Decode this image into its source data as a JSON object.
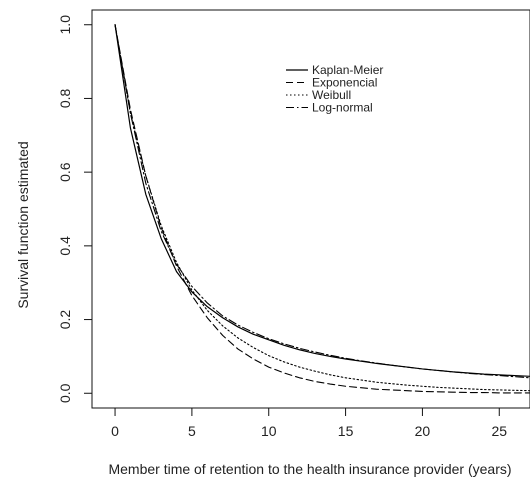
{
  "chart_data": {
    "type": "line",
    "xlabel": "Member time of retention to the health insurance provider (years)",
    "ylabel": "Survival function estimated",
    "xlim": [
      -1.5,
      27
    ],
    "ylim": [
      -0.04,
      1.04
    ],
    "x_ticks": [
      0,
      5,
      10,
      15,
      20,
      25
    ],
    "y_ticks": [
      0.0,
      0.2,
      0.4,
      0.6,
      0.8,
      1.0
    ],
    "x_tick_labels": [
      "0",
      "5",
      "10",
      "15",
      "20",
      "25"
    ],
    "y_tick_labels": [
      "0.0",
      "0.2",
      "0.4",
      "0.6",
      "0.8",
      "1.0"
    ],
    "grid": false,
    "legend_position": "top-center",
    "series": [
      {
        "name": "Kaplan-Meier",
        "line_style": "solid",
        "color": "#000000",
        "x": [
          0,
          1,
          2,
          3,
          4,
          5,
          6,
          7,
          8,
          9,
          10,
          11,
          12,
          13,
          14,
          15,
          16,
          17,
          18,
          19,
          20,
          21,
          22,
          23,
          24,
          25,
          26,
          27
        ],
        "y": [
          1.0,
          0.72,
          0.54,
          0.42,
          0.33,
          0.275,
          0.235,
          0.205,
          0.18,
          0.16,
          0.145,
          0.13,
          0.118,
          0.108,
          0.1,
          0.093,
          0.087,
          0.081,
          0.076,
          0.071,
          0.066,
          0.062,
          0.058,
          0.055,
          0.052,
          0.05,
          0.048,
          0.046
        ]
      },
      {
        "name": "Exponencial",
        "line_style": "dashed",
        "color": "#000000",
        "x": [
          0,
          1,
          2,
          3,
          4,
          5,
          6,
          7,
          8,
          9,
          10,
          11,
          12,
          13,
          14,
          15,
          16,
          17,
          18,
          19,
          20,
          21,
          22,
          23,
          24,
          25,
          26,
          27
        ],
        "y": [
          1.0,
          0.77,
          0.59,
          0.45,
          0.345,
          0.265,
          0.205,
          0.157,
          0.12,
          0.093,
          0.071,
          0.055,
          0.042,
          0.032,
          0.025,
          0.019,
          0.015,
          0.011,
          0.009,
          0.007,
          0.005,
          0.004,
          0.003,
          0.002,
          0.002,
          0.001,
          0.001,
          0.001
        ]
      },
      {
        "name": "Weibull",
        "line_style": "dotted",
        "color": "#000000",
        "x": [
          0,
          1,
          2,
          3,
          4,
          5,
          6,
          7,
          8,
          9,
          10,
          11,
          12,
          13,
          14,
          15,
          16,
          17,
          18,
          19,
          20,
          21,
          22,
          23,
          24,
          25,
          26,
          27
        ],
        "y": [
          1.0,
          0.76,
          0.59,
          0.455,
          0.355,
          0.28,
          0.225,
          0.183,
          0.15,
          0.124,
          0.102,
          0.085,
          0.071,
          0.06,
          0.05,
          0.042,
          0.036,
          0.03,
          0.026,
          0.022,
          0.019,
          0.016,
          0.014,
          0.012,
          0.01,
          0.009,
          0.008,
          0.007
        ]
      },
      {
        "name": "Log-normal",
        "line_style": "dotdash",
        "color": "#000000",
        "x": [
          0,
          1,
          2,
          3,
          4,
          5,
          6,
          7,
          8,
          9,
          10,
          11,
          12,
          13,
          14,
          15,
          16,
          17,
          18,
          19,
          20,
          21,
          22,
          23,
          24,
          25,
          26,
          27
        ],
        "y": [
          1.0,
          0.76,
          0.57,
          0.44,
          0.35,
          0.29,
          0.245,
          0.21,
          0.185,
          0.165,
          0.148,
          0.134,
          0.122,
          0.112,
          0.103,
          0.095,
          0.088,
          0.082,
          0.076,
          0.071,
          0.066,
          0.062,
          0.058,
          0.054,
          0.051,
          0.048,
          0.045,
          0.042
        ]
      }
    ]
  }
}
